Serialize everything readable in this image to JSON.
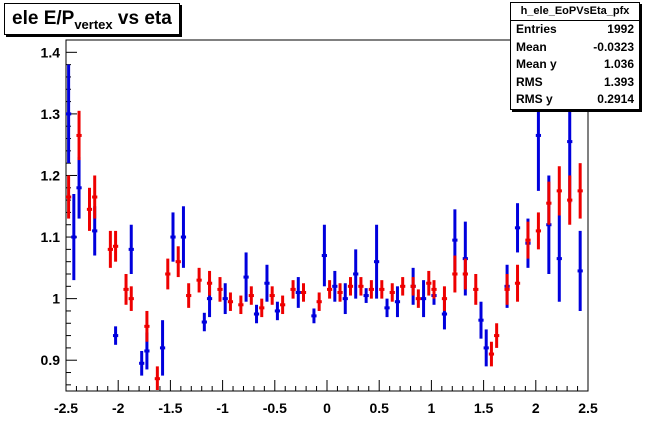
{
  "title": {
    "main": "ele E/P",
    "subscript": "vertex",
    "suffix": " vs eta"
  },
  "stats": {
    "name": "h_ele_EoPVsEta_pfx",
    "rows": [
      {
        "label": "Entries",
        "value": "1992"
      },
      {
        "label": "Mean",
        "value": "-0.0323"
      },
      {
        "label": "Mean y",
        "value": "1.036"
      },
      {
        "label": "RMS",
        "value": "1.393"
      },
      {
        "label": "RMS y",
        "value": "0.2914"
      }
    ]
  },
  "colors": {
    "blue": "#0000dd",
    "red": "#ee0000"
  },
  "chart_data": {
    "type": "scatter",
    "title": "ele E/P vertex vs eta",
    "xlabel": "",
    "ylabel": "",
    "xlim": [
      -2.5,
      2.5
    ],
    "ylim": [
      0.85,
      1.42
    ],
    "x_ticks": [
      "-2.5",
      "-2",
      "-1.5",
      "-1",
      "-0.5",
      "0",
      "0.5",
      "1",
      "1.5",
      "2",
      "2.5"
    ],
    "y_ticks": [
      "0.9",
      "1",
      "1.1",
      "1.2",
      "1.3",
      "1.4"
    ],
    "series": [
      {
        "color": "blue",
        "points": [
          {
            "x": -2.475,
            "y": 1.3,
            "err": 0.08
          },
          {
            "x": -2.425,
            "y": 1.1,
            "err": 0.07
          },
          {
            "x": -2.375,
            "y": 1.18,
            "err": 0.05
          },
          {
            "x": -2.225,
            "y": 1.11,
            "err": 0.04
          },
          {
            "x": -2.025,
            "y": 0.94,
            "err": 0.015
          },
          {
            "x": -1.875,
            "y": 1.08,
            "err": 0.04
          },
          {
            "x": -1.775,
            "y": 0.895,
            "err": 0.02
          },
          {
            "x": -1.725,
            "y": 0.915,
            "err": 0.03
          },
          {
            "x": -1.575,
            "y": 0.92,
            "err": 0.045
          },
          {
            "x": -1.475,
            "y": 1.1,
            "err": 0.04
          },
          {
            "x": -1.375,
            "y": 1.1,
            "err": 0.05
          },
          {
            "x": -1.175,
            "y": 0.962,
            "err": 0.015
          },
          {
            "x": -1.125,
            "y": 1.0,
            "err": 0.03
          },
          {
            "x": -0.975,
            "y": 1.0,
            "err": 0.025
          },
          {
            "x": -0.775,
            "y": 1.035,
            "err": 0.04
          },
          {
            "x": -0.675,
            "y": 0.975,
            "err": 0.015
          },
          {
            "x": -0.575,
            "y": 1.025,
            "err": 0.03
          },
          {
            "x": -0.475,
            "y": 0.98,
            "err": 0.015
          },
          {
            "x": -0.275,
            "y": 1.01,
            "err": 0.025
          },
          {
            "x": -0.125,
            "y": 0.972,
            "err": 0.012
          },
          {
            "x": -0.025,
            "y": 1.07,
            "err": 0.05
          },
          {
            "x": 0.075,
            "y": 1.02,
            "err": 0.025
          },
          {
            "x": 0.175,
            "y": 1.0,
            "err": 0.025
          },
          {
            "x": 0.275,
            "y": 1.04,
            "err": 0.04
          },
          {
            "x": 0.375,
            "y": 1.005,
            "err": 0.012
          },
          {
            "x": 0.475,
            "y": 1.06,
            "err": 0.06
          },
          {
            "x": 0.575,
            "y": 0.985,
            "err": 0.015
          },
          {
            "x": 0.675,
            "y": 0.995,
            "err": 0.025
          },
          {
            "x": 0.825,
            "y": 1.02,
            "err": 0.03
          },
          {
            "x": 0.925,
            "y": 1.0,
            "err": 0.03
          },
          {
            "x": 1.025,
            "y": 1.005,
            "err": 0.015
          },
          {
            "x": 1.125,
            "y": 0.975,
            "err": 0.025
          },
          {
            "x": 1.225,
            "y": 1.095,
            "err": 0.05
          },
          {
            "x": 1.325,
            "y": 1.065,
            "err": 0.06
          },
          {
            "x": 1.475,
            "y": 0.965,
            "err": 0.03
          },
          {
            "x": 1.525,
            "y": 0.92,
            "err": 0.03
          },
          {
            "x": 1.725,
            "y": 1.02,
            "err": 0.035
          },
          {
            "x": 1.825,
            "y": 1.115,
            "err": 0.04
          },
          {
            "x": 1.925,
            "y": 1.09,
            "err": 0.04
          },
          {
            "x": 2.025,
            "y": 1.265,
            "err": 0.09
          },
          {
            "x": 2.125,
            "y": 1.12,
            "err": 0.08
          },
          {
            "x": 2.225,
            "y": 1.065,
            "err": 0.07
          },
          {
            "x": 2.325,
            "y": 1.255,
            "err": 0.1
          },
          {
            "x": 2.425,
            "y": 1.045,
            "err": 0.065
          }
        ]
      },
      {
        "color": "red",
        "points": [
          {
            "x": -2.475,
            "y": 1.165,
            "err": 0.035
          },
          {
            "x": -2.375,
            "y": 1.265,
            "err": 0.04
          },
          {
            "x": -2.275,
            "y": 1.145,
            "err": 0.035
          },
          {
            "x": -2.225,
            "y": 1.165,
            "err": 0.035
          },
          {
            "x": -2.075,
            "y": 1.08,
            "err": 0.03
          },
          {
            "x": -2.025,
            "y": 1.085,
            "err": 0.025
          },
          {
            "x": -1.925,
            "y": 1.015,
            "err": 0.025
          },
          {
            "x": -1.875,
            "y": 1.0,
            "err": 0.02
          },
          {
            "x": -1.725,
            "y": 0.955,
            "err": 0.025
          },
          {
            "x": -1.625,
            "y": 0.87,
            "err": 0.02
          },
          {
            "x": -1.525,
            "y": 1.04,
            "err": 0.025
          },
          {
            "x": -1.425,
            "y": 1.06,
            "err": 0.025
          },
          {
            "x": -1.325,
            "y": 1.005,
            "err": 0.02
          },
          {
            "x": -1.225,
            "y": 1.03,
            "err": 0.02
          },
          {
            "x": -1.125,
            "y": 1.025,
            "err": 0.02
          },
          {
            "x": -1.025,
            "y": 1.015,
            "err": 0.02
          },
          {
            "x": -0.925,
            "y": 0.995,
            "err": 0.015
          },
          {
            "x": -0.825,
            "y": 0.99,
            "err": 0.015
          },
          {
            "x": -0.725,
            "y": 1.005,
            "err": 0.015
          },
          {
            "x": -0.625,
            "y": 0.985,
            "err": 0.015
          },
          {
            "x": -0.525,
            "y": 1.005,
            "err": 0.015
          },
          {
            "x": -0.425,
            "y": 0.99,
            "err": 0.015
          },
          {
            "x": -0.325,
            "y": 1.015,
            "err": 0.015
          },
          {
            "x": -0.225,
            "y": 1.01,
            "err": 0.015
          },
          {
            "x": -0.075,
            "y": 0.995,
            "err": 0.015
          },
          {
            "x": 0.025,
            "y": 1.015,
            "err": 0.015
          },
          {
            "x": 0.125,
            "y": 1.01,
            "err": 0.015
          },
          {
            "x": 0.225,
            "y": 1.02,
            "err": 0.015
          },
          {
            "x": 0.325,
            "y": 1.02,
            "err": 0.015
          },
          {
            "x": 0.425,
            "y": 1.015,
            "err": 0.015
          },
          {
            "x": 0.525,
            "y": 1.015,
            "err": 0.015
          },
          {
            "x": 0.625,
            "y": 1.01,
            "err": 0.015
          },
          {
            "x": 0.725,
            "y": 1.02,
            "err": 0.015
          },
          {
            "x": 0.825,
            "y": 1.02,
            "err": 0.015
          },
          {
            "x": 0.875,
            "y": 1.0,
            "err": 0.015
          },
          {
            "x": 0.975,
            "y": 1.025,
            "err": 0.02
          },
          {
            "x": 1.025,
            "y": 1.015,
            "err": 0.015
          },
          {
            "x": 1.125,
            "y": 1.0,
            "err": 0.02
          },
          {
            "x": 1.225,
            "y": 1.04,
            "err": 0.03
          },
          {
            "x": 1.325,
            "y": 1.04,
            "err": 0.025
          },
          {
            "x": 1.425,
            "y": 1.015,
            "err": 0.025
          },
          {
            "x": 1.575,
            "y": 0.91,
            "err": 0.02
          },
          {
            "x": 1.625,
            "y": 0.94,
            "err": 0.02
          },
          {
            "x": 1.725,
            "y": 1.015,
            "err": 0.025
          },
          {
            "x": 1.825,
            "y": 1.025,
            "err": 0.03
          },
          {
            "x": 1.925,
            "y": 1.095,
            "err": 0.03
          },
          {
            "x": 2.025,
            "y": 1.11,
            "err": 0.03
          },
          {
            "x": 2.125,
            "y": 1.155,
            "err": 0.035
          },
          {
            "x": 2.225,
            "y": 1.175,
            "err": 0.04
          },
          {
            "x": 2.325,
            "y": 1.16,
            "err": 0.04
          },
          {
            "x": 2.425,
            "y": 1.175,
            "err": 0.045
          }
        ]
      }
    ]
  }
}
